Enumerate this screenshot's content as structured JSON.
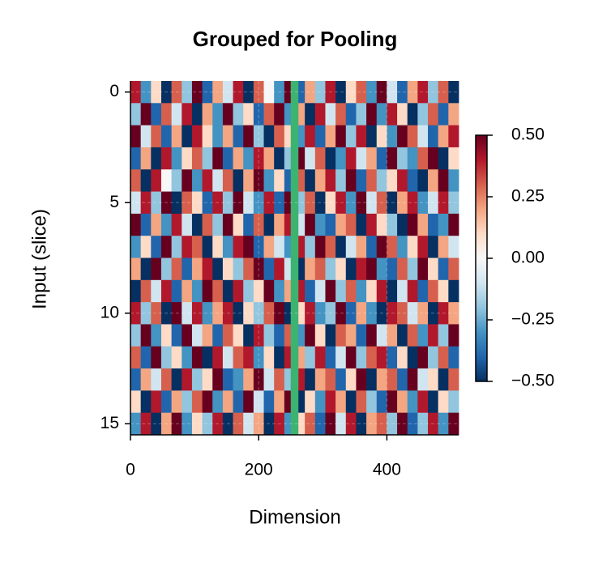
{
  "chart_data": {
    "type": "heatmap",
    "title": "Grouped for Pooling",
    "xlabel": "Dimension",
    "ylabel": "Input (slice)",
    "xlim": [
      0,
      512
    ],
    "ylim": [
      15.5,
      -0.5
    ],
    "xticks": [
      0,
      200,
      400
    ],
    "yticks": [
      0,
      5,
      10,
      15
    ],
    "grid": true,
    "x": [
      0,
      16,
      32,
      48,
      64,
      80,
      96,
      112,
      128,
      144,
      160,
      176,
      192,
      208,
      224,
      240,
      256,
      272,
      288,
      304,
      320,
      336,
      352,
      368,
      384,
      400,
      416,
      432,
      448,
      464,
      480,
      496,
      512
    ],
    "z": [
      [
        0.4,
        -0.3,
        0.1,
        -0.5,
        0.3,
        -0.2,
        0.5,
        -0.4,
        0.2,
        -0.1,
        0.4,
        -0.5,
        0.3,
        0.0,
        -0.3,
        0.5,
        -0.4,
        0.2,
        -0.2,
        0.4,
        -0.5,
        0.1,
        0.3,
        -0.3,
        0.5,
        -0.1,
        -0.4,
        0.2,
        0.4,
        -0.2,
        0.3,
        -0.5
      ],
      [
        -0.2,
        0.5,
        -0.4,
        0.3,
        -0.1,
        0.4,
        -0.5,
        0.2,
        -0.3,
        0.5,
        -0.2,
        0.1,
        -0.4,
        0.3,
        0.5,
        -0.3,
        0.2,
        -0.5,
        0.4,
        -0.1,
        0.3,
        -0.4,
        -0.2,
        0.5,
        -0.3,
        0.4,
        0.1,
        -0.5,
        -0.2,
        0.3,
        -0.4,
        0.2
      ],
      [
        0.5,
        -0.1,
        0.3,
        -0.4,
        0.2,
        -0.5,
        0.4,
        0.1,
        -0.3,
        0.2,
        -0.4,
        0.5,
        -0.2,
        -0.5,
        0.3,
        0.1,
        -0.3,
        0.4,
        -0.4,
        0.2,
        0.5,
        -0.2,
        0.4,
        -0.5,
        0.1,
        -0.3,
        0.5,
        0.3,
        -0.1,
        -0.4,
        0.2,
        0.4
      ],
      [
        -0.4,
        0.2,
        -0.5,
        0.4,
        -0.3,
        0.1,
        0.3,
        -0.2,
        0.5,
        -0.4,
        0.2,
        -0.3,
        0.4,
        0.2,
        -0.5,
        -0.2,
        0.5,
        -0.1,
        0.3,
        -0.5,
        -0.3,
        0.4,
        -0.1,
        0.2,
        -0.4,
        0.5,
        -0.2,
        -0.3,
        0.3,
        0.5,
        -0.5,
        0.1
      ],
      [
        0.3,
        -0.5,
        0.4,
        0.0,
        -0.2,
        0.5,
        -0.3,
        0.4,
        -0.1,
        0.3,
        -0.5,
        0.2,
        0.5,
        -0.3,
        0.1,
        -0.4,
        0.3,
        -0.5,
        0.2,
        0.4,
        -0.2,
        0.5,
        -0.4,
        0.3,
        -0.2,
        0.1,
        0.4,
        -0.4,
        -0.5,
        0.2,
        0.5,
        -0.3
      ],
      [
        -0.1,
        0.4,
        -0.2,
        0.5,
        -0.5,
        0.3,
        0.1,
        -0.4,
        0.4,
        -0.2,
        0.5,
        -0.1,
        -0.3,
        0.4,
        -0.4,
        0.5,
        -0.2,
        0.3,
        -0.5,
        0.1,
        0.4,
        -0.3,
        0.5,
        -0.1,
        0.3,
        -0.5,
        0.2,
        0.4,
        -0.3,
        -0.1,
        0.4,
        -0.2
      ],
      [
        0.5,
        -0.4,
        0.2,
        -0.3,
        0.4,
        -0.1,
        -0.5,
        0.3,
        -0.2,
        0.5,
        0.1,
        -0.4,
        0.3,
        -0.5,
        0.2,
        0.4,
        -0.1,
        0.5,
        -0.3,
        -0.4,
        0.2,
        0.3,
        -0.5,
        0.4,
        0.1,
        -0.2,
        -0.5,
        0.5,
        0.2,
        -0.4,
        -0.3,
        0.5
      ],
      [
        -0.3,
        0.1,
        -0.4,
        0.5,
        -0.2,
        0.4,
        0.3,
        -0.5,
        0.1,
        -0.3,
        0.4,
        0.5,
        -0.4,
        0.2,
        -0.1,
        -0.3,
        0.4,
        -0.2,
        0.5,
        0.3,
        -0.5,
        -0.1,
        0.2,
        -0.4,
        0.5,
        0.3,
        -0.3,
        0.1,
        0.4,
        -0.5,
        0.2,
        -0.1
      ],
      [
        0.2,
        -0.5,
        0.5,
        -0.2,
        0.3,
        -0.4,
        0.2,
        0.4,
        -0.5,
        0.1,
        -0.2,
        0.3,
        0.5,
        -0.4,
        0.4,
        -0.1,
        -0.5,
        0.2,
        0.3,
        -0.2,
        0.1,
        -0.5,
        0.4,
        0.5,
        -0.3,
        -0.4,
        0.3,
        -0.2,
        0.5,
        0.1,
        -0.4,
        0.3
      ],
      [
        -0.5,
        0.3,
        -0.1,
        0.4,
        -0.4,
        0.2,
        -0.3,
        0.5,
        0.3,
        -0.5,
        0.4,
        -0.2,
        0.1,
        0.5,
        -0.3,
        0.2,
        0.4,
        -0.4,
        -0.1,
        0.5,
        -0.2,
        0.3,
        -0.3,
        0.1,
        0.4,
        -0.5,
        -0.1,
        0.4,
        -0.4,
        0.3,
        0.1,
        -0.5
      ],
      [
        0.4,
        -0.2,
        0.3,
        -0.5,
        0.5,
        -0.1,
        0.4,
        -0.3,
        0.2,
        0.4,
        -0.5,
        0.1,
        -0.2,
        0.3,
        0.5,
        -0.5,
        0.1,
        0.4,
        -0.3,
        -0.2,
        0.5,
        -0.4,
        0.2,
        -0.3,
        -0.5,
        0.4,
        0.3,
        -0.1,
        0.2,
        -0.5,
        0.4,
        0.2
      ],
      [
        -0.2,
        0.5,
        -0.3,
        0.1,
        -0.4,
        0.5,
        -0.1,
        0.2,
        -0.4,
        0.3,
        0.1,
        -0.5,
        0.4,
        -0.2,
        -0.4,
        0.3,
        -0.3,
        0.5,
        0.1,
        -0.5,
        0.3,
        0.2,
        -0.4,
        0.5,
        -0.1,
        0.2,
        -0.5,
        0.3,
        -0.3,
        0.4,
        -0.2,
        0.5
      ],
      [
        0.3,
        -0.4,
        0.5,
        -0.2,
        0.1,
        -0.3,
        0.5,
        -0.5,
        0.4,
        -0.1,
        0.3,
        0.4,
        -0.3,
        0.1,
        -0.5,
        0.4,
        0.2,
        -0.2,
        0.4,
        -0.4,
        -0.1,
        0.5,
        -0.2,
        0.3,
        0.4,
        -0.4,
        0.1,
        -0.5,
        0.5,
        -0.2,
        0.3,
        -0.4
      ],
      [
        -0.4,
        0.2,
        -0.1,
        0.3,
        -0.5,
        0.4,
        -0.2,
        0.1,
        0.5,
        -0.4,
        -0.3,
        0.2,
        0.5,
        -0.1,
        0.3,
        -0.2,
        0.4,
        -0.5,
        0.2,
        0.3,
        -0.4,
        0.1,
        0.5,
        -0.5,
        0.2,
        0.3,
        -0.4,
        0.5,
        -0.1,
        0.1,
        -0.5,
        0.3
      ],
      [
        0.1,
        -0.5,
        0.4,
        -0.4,
        0.2,
        -0.2,
        0.3,
        0.5,
        -0.3,
        0.2,
        -0.4,
        0.5,
        -0.1,
        -0.4,
        0.2,
        0.5,
        -0.5,
        0.1,
        -0.3,
        0.4,
        0.2,
        -0.5,
        0.3,
        -0.2,
        -0.4,
        0.5,
        0.2,
        -0.3,
        0.4,
        -0.5,
        0.1,
        -0.2
      ],
      [
        -0.3,
        0.4,
        -0.5,
        0.2,
        0.5,
        -0.3,
        0.1,
        -0.2,
        0.4,
        -0.5,
        0.3,
        -0.1,
        0.2,
        -0.5,
        0.4,
        -0.3,
        0.1,
        0.3,
        -0.4,
        0.5,
        -0.1,
        0.4,
        -0.5,
        0.2,
        0.3,
        -0.2,
        0.5,
        -0.4,
        -0.2,
        0.4,
        -0.3,
        0.5
      ]
    ],
    "highlight": {
      "xrange": [
        250,
        262
      ],
      "color": "#3cb371"
    },
    "vlim": [
      -0.5,
      0.5
    ],
    "colormap": [
      "#053061",
      "#2166ac",
      "#4393c3",
      "#92c5de",
      "#d1e5f0",
      "#f7f7f7",
      "#fddbc7",
      "#f4a582",
      "#d6604d",
      "#b2182b",
      "#67001f"
    ],
    "cticks": [
      {
        "value": 0.5,
        "label": "0.50"
      },
      {
        "value": 0.25,
        "label": "0.25"
      },
      {
        "value": 0,
        "label": "0.00"
      },
      {
        "value": -0.25,
        "label": "−0.25"
      },
      {
        "value": -0.5,
        "label": "−0.50"
      }
    ]
  }
}
